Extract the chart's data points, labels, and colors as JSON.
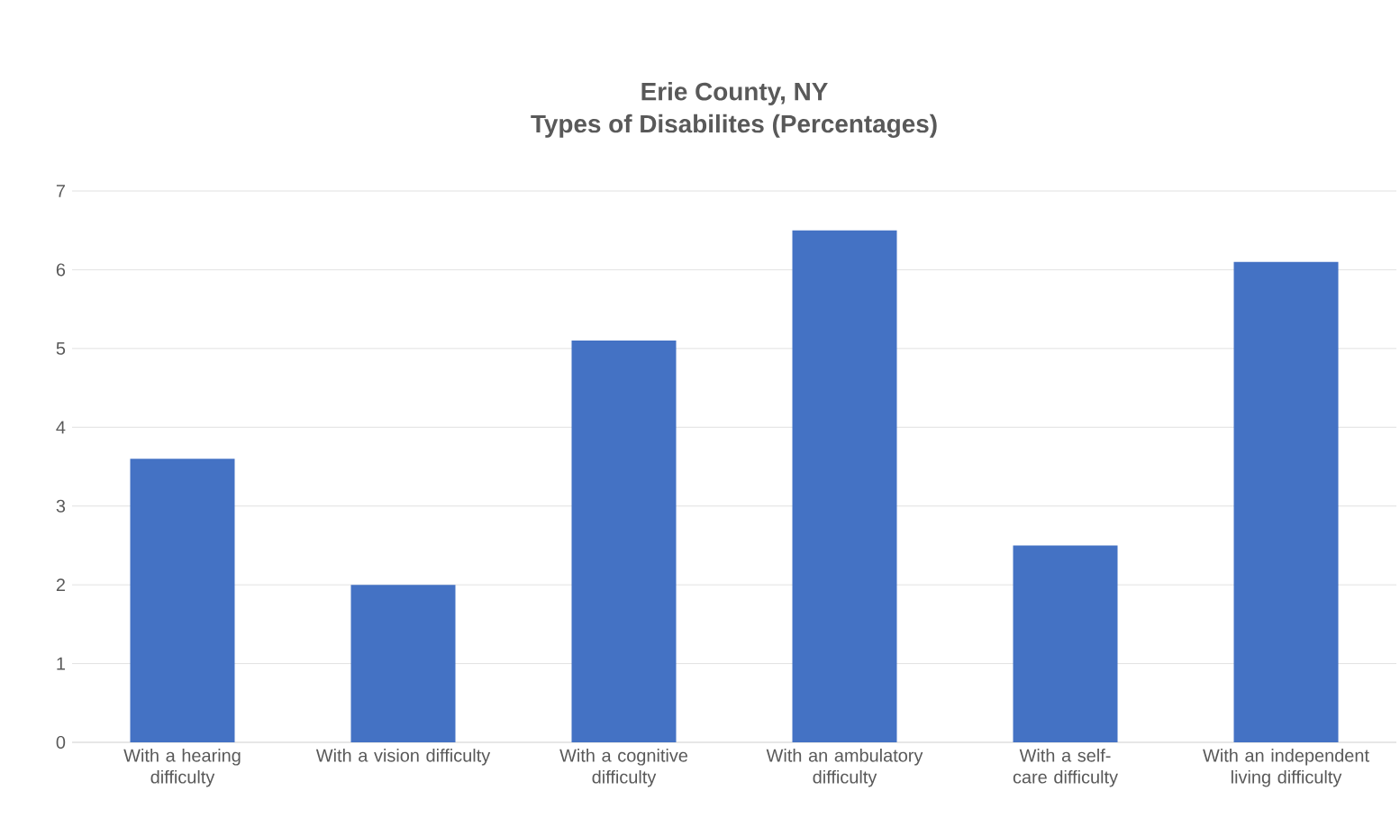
{
  "chart_data": {
    "type": "bar",
    "title": "Erie County, NY\nTypes of Disabilites (Percentages)",
    "categories": [
      "With a hearing difficulty",
      "With a vision difficulty",
      "With a cognitive difficulty",
      "With an ambulatory difficulty",
      "With a self-care difficulty",
      "With an independent living difficulty"
    ],
    "values": [
      3.6,
      2.0,
      5.1,
      6.5,
      2.5,
      6.1
    ],
    "color": "#4472c4",
    "ylim": [
      0,
      7
    ],
    "yticks": [
      0,
      1,
      2,
      3,
      4,
      5,
      6,
      7
    ],
    "grid": "y"
  }
}
